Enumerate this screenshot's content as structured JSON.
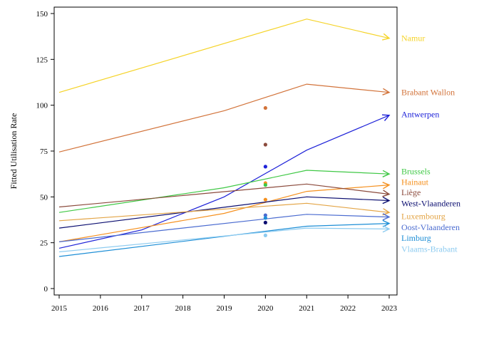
{
  "chart_data": {
    "type": "line",
    "title": "",
    "xlabel": "",
    "ylabel": "Fitted Utilisation Rate",
    "xlim": [
      2015,
      2023
    ],
    "ylim": [
      0,
      155
    ],
    "x_ticks": [
      "2015",
      "2016",
      "2017",
      "2018",
      "2019",
      "2020",
      "2021",
      "2022",
      "2023"
    ],
    "y_ticks": [
      "0",
      "25",
      "50",
      "75",
      "100",
      "125",
      "150"
    ],
    "grid": false,
    "legend": "direct labels at right end of lines",
    "series": [
      {
        "name": "Namur",
        "color": "#F5D327",
        "points": [
          [
            2015,
            107
          ],
          [
            2021,
            147
          ],
          [
            2023,
            136.5
          ]
        ]
      },
      {
        "name": "Brabant Wallon",
        "color": "#D2733A",
        "points": [
          [
            2015,
            74.5
          ],
          [
            2019,
            97
          ],
          [
            2021,
            111.5
          ],
          [
            2023,
            107
          ]
        ]
      },
      {
        "name": "Antwerpen",
        "color": "#1E22D8",
        "points": [
          [
            2015,
            22
          ],
          [
            2017,
            32
          ],
          [
            2019,
            50
          ],
          [
            2021,
            75.5
          ],
          [
            2023,
            94.5
          ]
        ]
      },
      {
        "name": "Brussels",
        "color": "#3FC845",
        "points": [
          [
            2015,
            41.5
          ],
          [
            2019,
            55
          ],
          [
            2021,
            64.5
          ],
          [
            2023,
            62.5
          ]
        ]
      },
      {
        "name": "Hainaut",
        "color": "#F5901E",
        "points": [
          [
            2015,
            25.5
          ],
          [
            2019,
            41
          ],
          [
            2021,
            53
          ],
          [
            2023,
            56.5
          ]
        ]
      },
      {
        "name": "Liège",
        "color": "#8B4A3C",
        "points": [
          [
            2015,
            44.5
          ],
          [
            2021,
            57
          ],
          [
            2023,
            51.5
          ]
        ]
      },
      {
        "name": "West-Vlaanderen",
        "color": "#0B0E70",
        "points": [
          [
            2015,
            33
          ],
          [
            2021,
            50
          ],
          [
            2023,
            48
          ]
        ]
      },
      {
        "name": "Luxembourg",
        "color": "#E3A445",
        "points": [
          [
            2015,
            37
          ],
          [
            2021,
            46.5
          ],
          [
            2023,
            41.5
          ]
        ]
      },
      {
        "name": "Oost-Vlaanderen",
        "color": "#4A6BD0",
        "points": [
          [
            2015,
            25.5
          ],
          [
            2021,
            40.5
          ],
          [
            2023,
            39
          ]
        ]
      },
      {
        "name": "Limburg",
        "color": "#1D8ED6",
        "points": [
          [
            2015,
            17.5
          ],
          [
            2021,
            34
          ],
          [
            2023,
            35.5
          ]
        ]
      },
      {
        "name": "Vlaams-Brabant",
        "color": "#8DCBF0",
        "points": [
          [
            2015,
            20
          ],
          [
            2021,
            33
          ],
          [
            2023,
            32.5
          ]
        ]
      }
    ],
    "observed_points": [
      {
        "x": 2020,
        "y": 98.5,
        "color": "#D2733A"
      },
      {
        "x": 2020,
        "y": 78.5,
        "color": "#8B4A3C"
      },
      {
        "x": 2020,
        "y": 66.5,
        "color": "#1E22D8"
      },
      {
        "x": 2020,
        "y": 57.5,
        "color": "#F5901E"
      },
      {
        "x": 2020,
        "y": 56.5,
        "color": "#3FC845"
      },
      {
        "x": 2020,
        "y": 48.5,
        "color": "#F5901E"
      },
      {
        "x": 2020,
        "y": 40,
        "color": "#4A6BD0"
      },
      {
        "x": 2020,
        "y": 38.5,
        "color": "#1D8ED6"
      },
      {
        "x": 2020,
        "y": 36,
        "color": "#0B0E70"
      },
      {
        "x": 2020,
        "y": 29,
        "color": "#8DCBF0"
      }
    ],
    "labels": [
      {
        "text": "Namur",
        "y": 136.5,
        "color": "#F5D327"
      },
      {
        "text": "Brabant Wallon",
        "y": 107,
        "color": "#D2733A"
      },
      {
        "text": "Antwerpen",
        "y": 95,
        "color": "#1E22D8"
      },
      {
        "text": "Brussels",
        "y": 64,
        "color": "#3FC845"
      },
      {
        "text": "Hainaut",
        "y": 58,
        "color": "#F5901E"
      },
      {
        "text": "Liège",
        "y": 52.5,
        "color": "#8B4A3C"
      },
      {
        "text": "West-Vlaanderen",
        "y": 46.5,
        "color": "#0B0E70"
      },
      {
        "text": "Luxembourg",
        "y": 39.5,
        "color": "#E3A445"
      },
      {
        "text": "Oost-Vlaanderen",
        "y": 33.5,
        "color": "#4A6BD0"
      },
      {
        "text": "Limburg",
        "y": 27.5,
        "color": "#1D8ED6"
      },
      {
        "text": "Vlaams-Brabant",
        "y": 21.5,
        "color": "#8DCBF0"
      }
    ]
  }
}
